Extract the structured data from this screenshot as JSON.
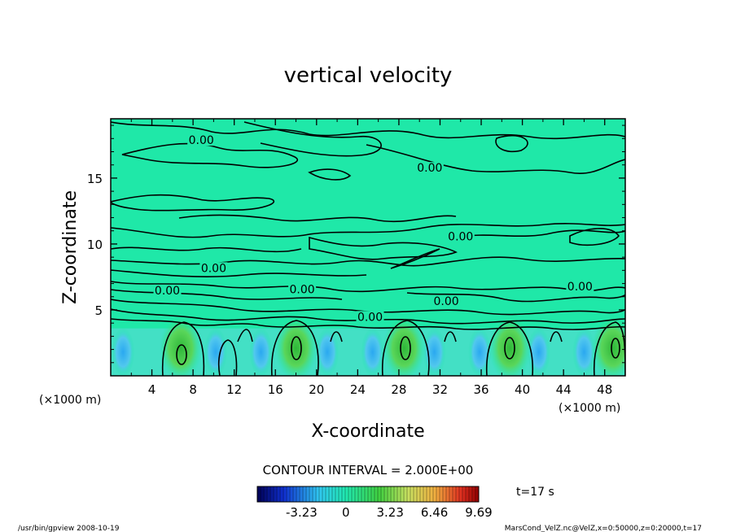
{
  "chart_data": {
    "type": "heatmap",
    "title": "vertical velocity",
    "xlabel": "X-coordinate",
    "ylabel": "Z-coordinate",
    "x_unit": "(×1000 m)",
    "z_unit": "(×1000 m)",
    "xlim": [
      0,
      50
    ],
    "ylim": [
      0,
      19.5
    ],
    "x_ticks": [
      4,
      8,
      12,
      16,
      20,
      24,
      28,
      32,
      36,
      40,
      44,
      48
    ],
    "y_ticks": [
      5,
      10,
      15
    ],
    "contour_interval_text": "CONTOUR INTERVAL = 2.000E+00",
    "contour_labels": [
      {
        "text": "0.00",
        "x": 8.8,
        "z": 17.7
      },
      {
        "text": "0.00",
        "x": 31.0,
        "z": 15.6
      },
      {
        "text": "0.00",
        "x": 34.0,
        "z": 10.4
      },
      {
        "text": "0.00",
        "x": 10.0,
        "z": 8.0
      },
      {
        "text": "0.00",
        "x": 5.5,
        "z": 6.3
      },
      {
        "text": "0.00",
        "x": 18.6,
        "z": 6.4
      },
      {
        "text": "0.00",
        "x": 45.6,
        "z": 6.6
      },
      {
        "text": "0.00",
        "x": 32.6,
        "z": 5.5
      },
      {
        "text": "0.00",
        "x": 25.2,
        "z": 4.3
      }
    ],
    "updraft_centers_x": [
      6.8,
      18.0,
      28.5,
      38.8,
      48.8
    ],
    "colorbar": {
      "tick_labels": [
        "-3.23",
        "0",
        "3.23",
        "6.46",
        "9.69"
      ],
      "tick_values": [
        -3.23,
        0,
        3.23,
        6.46,
        9.69
      ],
      "range": [
        -6.46,
        9.69
      ]
    },
    "time_label": "t=17 s",
    "colors": {
      "background": "#1fe8a8",
      "updraft": "#3ec84a",
      "downdraft": "#33b4f0",
      "contour": "#000000"
    }
  },
  "footer": {
    "left": "/usr/bin/gpview   2008-10-19",
    "right": "MarsCond_VelZ.nc@VelZ,x=0:50000,z=0:20000,t=17"
  }
}
